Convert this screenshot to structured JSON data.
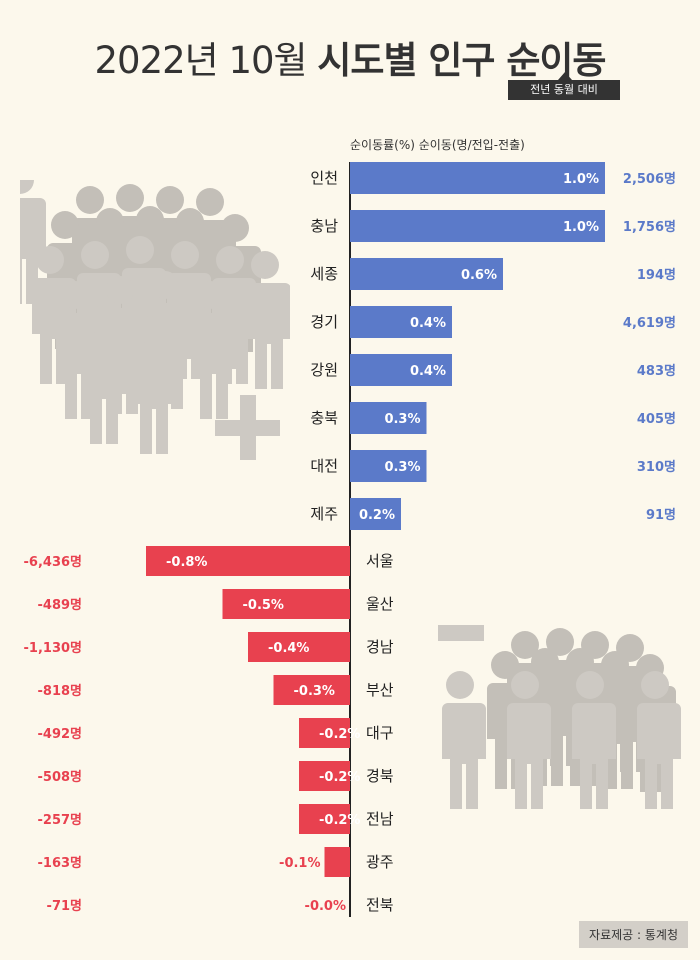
{
  "title": {
    "light": "2022년 10월 ",
    "bold": "시도별 인구 순이동"
  },
  "subtitle": "전년 동월 대비",
  "column_header": "순이동률(%) 순이동(명/전입-전출)",
  "source": "자료제공 : 통계청",
  "colors": {
    "positive": "#5b7ac9",
    "negative": "#e8414f",
    "axis": "#222222",
    "figure": "#cdc9c3"
  },
  "icons": [
    "people-crowd-plus-icon",
    "plus-icon",
    "people-crowd-minus-icon",
    "minus-icon"
  ],
  "chart_data": {
    "type": "bar",
    "orientation": "horizontal",
    "unit_rate": "%",
    "unit_count": "명",
    "categories": [
      "인천",
      "충남",
      "세종",
      "경기",
      "강원",
      "충북",
      "대전",
      "제주",
      "서울",
      "울산",
      "경남",
      "부산",
      "대구",
      "경북",
      "전남",
      "광주",
      "전북"
    ],
    "rate_labels": [
      "1.0%",
      "1.0%",
      "0.6%",
      "0.4%",
      "0.4%",
      "0.3%",
      "0.3%",
      "0.2%",
      "-0.8%",
      "-0.5%",
      "-0.4%",
      "-0.3%",
      "-0.2%",
      "-0.2%",
      "-0.2%",
      "-0.1%",
      "-0.0%"
    ],
    "count_labels": [
      "2,506명",
      "1,756명",
      "194명",
      "4,619명",
      "483명",
      "405명",
      "310명",
      "91명",
      "-6,436명",
      "-489명",
      "-1,130명",
      "-818명",
      "-492명",
      "-508명",
      "-257명",
      "-163명",
      "-71명"
    ],
    "series": [
      {
        "name": "순이동률(%)",
        "values": [
          1.0,
          1.0,
          0.6,
          0.4,
          0.4,
          0.3,
          0.3,
          0.2,
          -0.8,
          -0.5,
          -0.4,
          -0.3,
          -0.2,
          -0.2,
          -0.2,
          -0.1,
          -0.0
        ]
      },
      {
        "name": "순이동(명/전입-전출)",
        "values": [
          2506,
          1756,
          194,
          4619,
          483,
          405,
          310,
          91,
          -6436,
          -489,
          -1130,
          -818,
          -492,
          -508,
          -257,
          -163,
          -71
        ]
      }
    ]
  }
}
